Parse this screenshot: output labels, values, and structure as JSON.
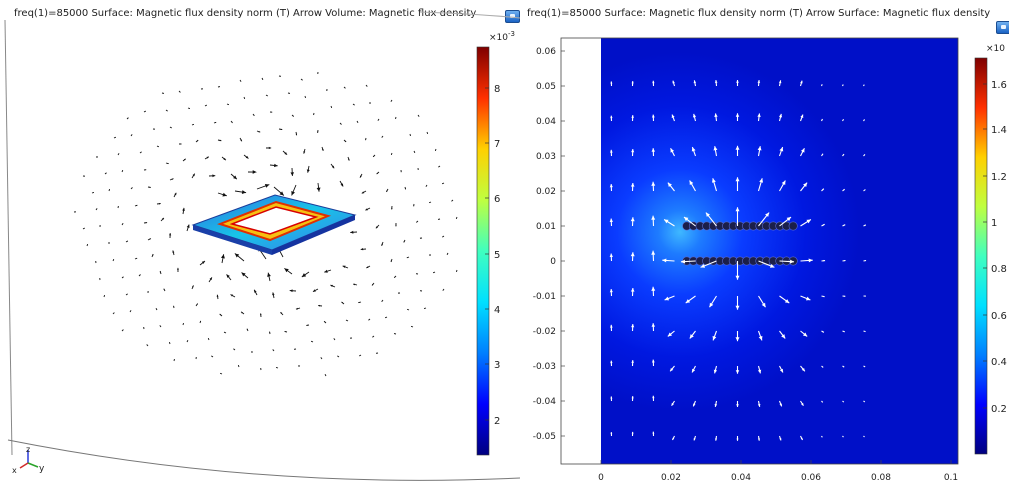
{
  "left_plot": {
    "title": "freq(1)=85000   Surface: Magnetic flux density norm (T)  Arrow Volume: Magnetic flux density",
    "colorbar": {
      "exponent_base": "×10",
      "exponent_power": "-3",
      "ticks": [
        "8",
        "7",
        "6",
        "5",
        "4",
        "3",
        "2"
      ]
    },
    "axes_triad": {
      "z": "z",
      "x": "x",
      "y": "y"
    },
    "icon": "camera-snapshot-icon"
  },
  "right_plot": {
    "title": "freq(1)=85000   Surface: Magnetic flux density norm (T)  Arrow Surface: Magnetic flux density",
    "colorbar": {
      "exponent_base": "×10",
      "ticks": [
        "1.6",
        "1.4",
        "1.2",
        "1",
        "0.8",
        "0.6",
        "0.4",
        "0.2"
      ]
    },
    "y_ticks": [
      "0.06",
      "0.05",
      "0.04",
      "0.03",
      "0.02",
      "0.01",
      "0",
      "-0.01",
      "-0.02",
      "-0.03",
      "-0.04",
      "-0.05"
    ],
    "x_ticks": [
      "0",
      "0.02",
      "0.04",
      "0.06",
      "0.08",
      "0.1"
    ],
    "icon": "camera-snapshot-icon"
  },
  "colors": {
    "colormap": [
      "#00007f",
      "#0000ff",
      "#007fff",
      "#00ffff",
      "#7fff7f",
      "#ffff00",
      "#ff7f00",
      "#ff0000",
      "#7f0000"
    ],
    "arrow_dark": "#000000",
    "arrow_light": "#ffffff"
  }
}
